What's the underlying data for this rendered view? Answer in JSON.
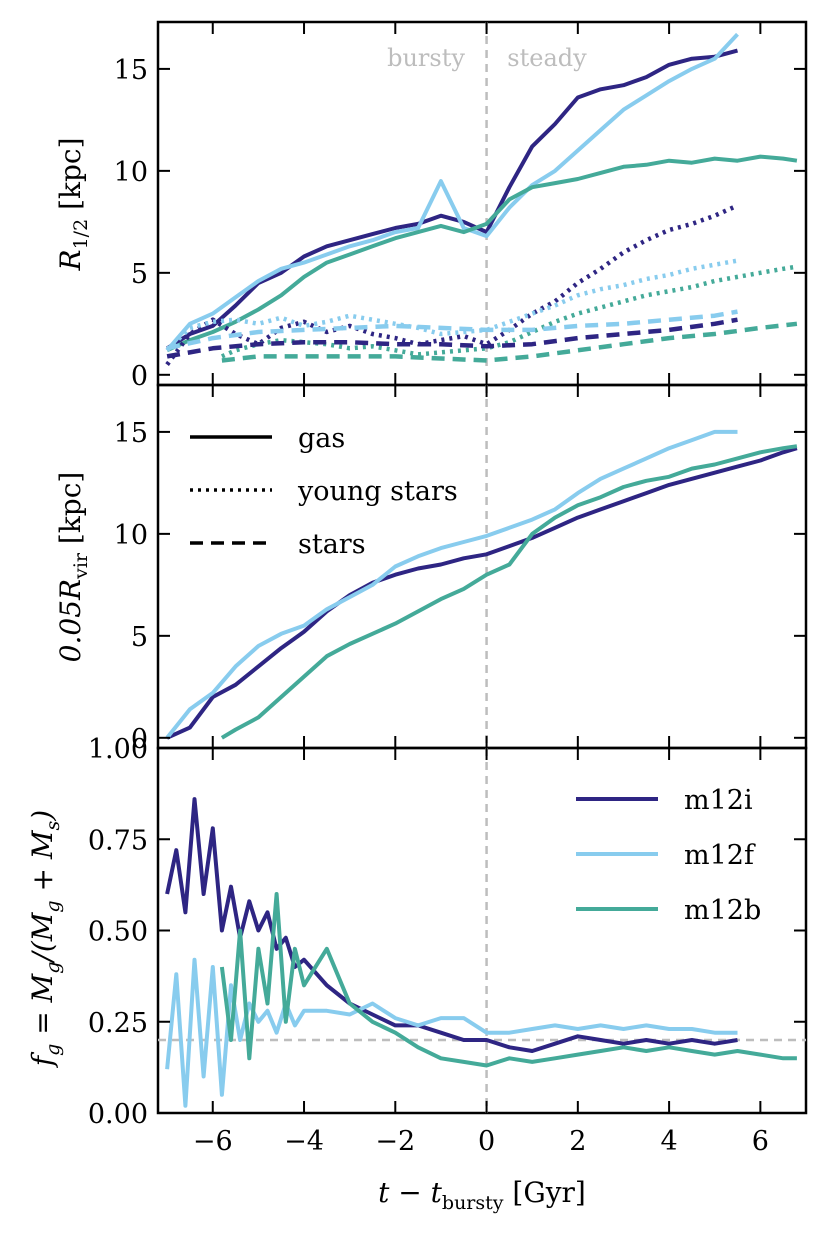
{
  "colors": {
    "m12i": "#2e2583",
    "m12f": "#88ccee",
    "m12b": "#44aa99",
    "reference": "#bdbdbd",
    "axes": "#000000"
  },
  "chart_data": [
    {
      "type": "line",
      "panel": "top",
      "ylabel_main": "R",
      "ylabel_sub": "1/2",
      "ylabel_unit": " [kpc]",
      "ylim": [
        -0.5,
        17.3
      ],
      "yticks": [
        0,
        5,
        10,
        15
      ],
      "ytick_labels": [
        "0",
        "5",
        "10",
        "15"
      ],
      "annotations": {
        "left": "bursty",
        "right": "steady"
      },
      "series": [
        {
          "name": "m12i gas",
          "sim": "m12i",
          "style": "solid",
          "x": [
            -7.0,
            -6.5,
            -6.0,
            -5.5,
            -5.0,
            -4.5,
            -4.0,
            -3.5,
            -3.0,
            -2.5,
            -2.0,
            -1.5,
            -1.0,
            -0.5,
            0.0,
            0.5,
            1.0,
            1.5,
            2.0,
            2.5,
            3.0,
            3.5,
            4.0,
            4.5,
            5.0,
            5.5
          ],
          "y": [
            1.3,
            2.0,
            2.4,
            3.4,
            4.5,
            5.0,
            5.8,
            6.3,
            6.6,
            6.9,
            7.2,
            7.4,
            7.8,
            7.5,
            7.0,
            9.2,
            11.2,
            12.3,
            13.6,
            14.0,
            14.2,
            14.6,
            15.2,
            15.5,
            15.6,
            15.9
          ]
        },
        {
          "name": "m12f gas",
          "sim": "m12f",
          "style": "solid",
          "x": [
            -7.0,
            -6.5,
            -6.0,
            -5.5,
            -5.0,
            -4.5,
            -4.0,
            -3.5,
            -3.0,
            -2.5,
            -2.0,
            -1.5,
            -1.0,
            -0.5,
            0.0,
            0.5,
            1.0,
            1.5,
            2.0,
            2.5,
            3.0,
            3.5,
            4.0,
            4.5,
            5.0,
            5.5
          ],
          "y": [
            1.2,
            2.5,
            3.0,
            3.8,
            4.6,
            5.2,
            5.5,
            5.9,
            6.3,
            6.6,
            7.0,
            7.2,
            9.5,
            7.2,
            6.8,
            8.2,
            9.3,
            10.0,
            11.0,
            12.0,
            13.0,
            13.7,
            14.4,
            15.0,
            15.5,
            16.7
          ]
        },
        {
          "name": "m12b gas",
          "sim": "m12b",
          "style": "solid",
          "x": [
            -7.0,
            -6.5,
            -6.0,
            -5.5,
            -5.0,
            -4.5,
            -4.0,
            -3.5,
            -3.0,
            -2.5,
            -2.0,
            -1.5,
            -1.0,
            -0.5,
            0.0,
            0.5,
            1.0,
            1.5,
            2.0,
            2.5,
            3.0,
            3.5,
            4.0,
            4.5,
            5.0,
            5.5,
            6.0,
            6.5,
            6.8
          ],
          "y": [
            1.2,
            1.7,
            2.1,
            2.6,
            3.2,
            3.9,
            4.8,
            5.5,
            5.9,
            6.3,
            6.7,
            7.0,
            7.3,
            7.0,
            7.4,
            8.6,
            9.2,
            9.4,
            9.6,
            9.9,
            10.2,
            10.3,
            10.5,
            10.4,
            10.6,
            10.5,
            10.7,
            10.6,
            10.5
          ]
        },
        {
          "name": "m12i young stars",
          "sim": "m12i",
          "style": "dotted",
          "x": [
            -7.0,
            -6.5,
            -6.0,
            -5.5,
            -5.0,
            -4.5,
            -4.0,
            -3.5,
            -3.0,
            -2.5,
            -2.0,
            -1.5,
            -1.0,
            -0.5,
            0.0,
            0.5,
            1.0,
            1.5,
            2.0,
            2.5,
            3.0,
            3.5,
            4.0,
            4.5,
            5.0,
            5.5
          ],
          "y": [
            0.5,
            2.0,
            2.7,
            2.0,
            1.5,
            2.3,
            2.6,
            2.1,
            2.4,
            2.0,
            1.8,
            1.5,
            1.7,
            1.9,
            1.5,
            2.2,
            3.0,
            3.6,
            4.5,
            5.2,
            6.0,
            6.6,
            7.1,
            7.4,
            7.8,
            8.3
          ]
        },
        {
          "name": "m12f young stars",
          "sim": "m12f",
          "style": "dotted",
          "x": [
            -7.0,
            -6.5,
            -6.0,
            -5.5,
            -5.0,
            -4.5,
            -4.0,
            -3.5,
            -3.0,
            -2.5,
            -2.0,
            -1.5,
            -1.0,
            -0.5,
            0.0,
            0.5,
            1.0,
            1.5,
            2.0,
            2.5,
            3.0,
            3.5,
            4.0,
            4.5,
            5.0,
            5.5
          ],
          "y": [
            1.2,
            2.3,
            2.6,
            2.7,
            2.5,
            2.8,
            2.4,
            2.6,
            2.9,
            2.7,
            2.5,
            2.3,
            2.0,
            2.1,
            2.2,
            2.6,
            3.0,
            3.4,
            3.9,
            4.2,
            4.4,
            4.7,
            4.9,
            5.2,
            5.4,
            5.6
          ]
        },
        {
          "name": "m12b young stars",
          "sim": "m12b",
          "style": "dotted",
          "x": [
            -5.8,
            -5.5,
            -5.0,
            -4.5,
            -4.0,
            -3.5,
            -3.0,
            -2.5,
            -2.0,
            -1.5,
            -1.0,
            -0.5,
            0.0,
            0.5,
            1.0,
            1.5,
            2.0,
            2.5,
            3.0,
            3.5,
            4.0,
            4.5,
            5.0,
            5.5,
            6.0,
            6.5,
            6.8
          ],
          "y": [
            0.9,
            1.2,
            1.5,
            1.7,
            1.6,
            1.5,
            1.3,
            1.4,
            1.2,
            1.0,
            1.1,
            1.2,
            1.3,
            1.6,
            2.1,
            2.6,
            3.0,
            3.3,
            3.6,
            3.9,
            4.1,
            4.3,
            4.6,
            4.8,
            5.0,
            5.2,
            5.3
          ]
        },
        {
          "name": "m12i stars",
          "sim": "m12i",
          "style": "dashed",
          "x": [
            -7.0,
            -6.0,
            -5.0,
            -4.0,
            -3.0,
            -2.0,
            -1.0,
            0.0,
            1.0,
            2.0,
            3.0,
            4.0,
            5.0,
            5.5
          ],
          "y": [
            0.9,
            1.3,
            1.5,
            1.6,
            1.6,
            1.5,
            1.5,
            1.4,
            1.5,
            1.8,
            2.0,
            2.2,
            2.5,
            2.7
          ]
        },
        {
          "name": "m12f stars",
          "sim": "m12f",
          "style": "dashed",
          "x": [
            -7.0,
            -6.0,
            -5.0,
            -4.0,
            -3.0,
            -2.0,
            -1.0,
            0.0,
            1.0,
            2.0,
            3.0,
            4.0,
            5.0,
            5.5
          ],
          "y": [
            1.3,
            1.8,
            2.1,
            2.2,
            2.3,
            2.4,
            2.3,
            2.2,
            2.2,
            2.4,
            2.5,
            2.7,
            2.9,
            3.1
          ]
        },
        {
          "name": "m12b stars",
          "sim": "m12b",
          "style": "dashed",
          "x": [
            -5.8,
            -5.0,
            -4.0,
            -3.0,
            -2.0,
            -1.0,
            0.0,
            1.0,
            2.0,
            3.0,
            4.0,
            5.0,
            6.0,
            6.8
          ],
          "y": [
            0.7,
            0.9,
            0.9,
            0.9,
            0.9,
            0.8,
            0.7,
            0.9,
            1.2,
            1.5,
            1.8,
            2.0,
            2.3,
            2.5
          ]
        }
      ]
    },
    {
      "type": "line",
      "panel": "middle",
      "ylabel_main": "0.05R",
      "ylabel_sub": "vir",
      "ylabel_unit": " [kpc]",
      "ylim": [
        -0.5,
        17.3
      ],
      "yticks": [
        0,
        5,
        10,
        15
      ],
      "ytick_labels": [
        "0",
        "5",
        "10",
        "15"
      ],
      "legend": {
        "placement": "upper-left",
        "entries": [
          {
            "label": "gas",
            "style": "solid"
          },
          {
            "label": "young stars",
            "style": "dotted"
          },
          {
            "label": "stars",
            "style": "dashed"
          }
        ]
      },
      "series": [
        {
          "name": "m12i",
          "sim": "m12i",
          "style": "solid",
          "x": [
            -7.0,
            -6.5,
            -6.0,
            -5.5,
            -5.0,
            -4.5,
            -4.0,
            -3.5,
            -3.0,
            -2.5,
            -2.0,
            -1.5,
            -1.0,
            -0.5,
            0.0,
            0.5,
            1.0,
            1.5,
            2.0,
            2.5,
            3.0,
            3.5,
            4.0,
            4.5,
            5.0,
            5.5,
            6.0,
            6.5,
            6.8
          ],
          "y": [
            0.0,
            0.5,
            2.0,
            2.6,
            3.5,
            4.4,
            5.2,
            6.2,
            7.0,
            7.6,
            8.0,
            8.3,
            8.5,
            8.8,
            9.0,
            9.4,
            9.8,
            10.3,
            10.8,
            11.2,
            11.6,
            12.0,
            12.4,
            12.7,
            13.0,
            13.3,
            13.6,
            14.0,
            14.2
          ]
        },
        {
          "name": "m12f",
          "sim": "m12f",
          "style": "solid",
          "x": [
            -7.0,
            -6.5,
            -6.0,
            -5.5,
            -5.0,
            -4.5,
            -4.0,
            -3.5,
            -3.0,
            -2.5,
            -2.0,
            -1.5,
            -1.0,
            -0.5,
            0.0,
            0.5,
            1.0,
            1.5,
            2.0,
            2.5,
            3.0,
            3.5,
            4.0,
            4.5,
            5.0,
            5.5
          ],
          "y": [
            0.0,
            1.4,
            2.2,
            3.5,
            4.5,
            5.1,
            5.5,
            6.3,
            6.9,
            7.5,
            8.4,
            8.9,
            9.3,
            9.6,
            9.9,
            10.3,
            10.7,
            11.2,
            12.0,
            12.7,
            13.2,
            13.7,
            14.2,
            14.6,
            15.0,
            15.0
          ]
        },
        {
          "name": "m12b",
          "sim": "m12b",
          "style": "solid",
          "x": [
            -5.8,
            -5.5,
            -5.0,
            -4.5,
            -4.0,
            -3.5,
            -3.0,
            -2.5,
            -2.0,
            -1.5,
            -1.0,
            -0.5,
            0.0,
            0.5,
            1.0,
            1.5,
            2.0,
            2.5,
            3.0,
            3.5,
            4.0,
            4.5,
            5.0,
            5.5,
            6.0,
            6.5,
            6.8
          ],
          "y": [
            0.0,
            0.4,
            1.0,
            2.0,
            3.0,
            4.0,
            4.6,
            5.1,
            5.6,
            6.2,
            6.8,
            7.3,
            8.0,
            8.5,
            10.0,
            10.8,
            11.4,
            11.8,
            12.3,
            12.6,
            12.8,
            13.2,
            13.4,
            13.7,
            14.0,
            14.2,
            14.3
          ]
        }
      ]
    },
    {
      "type": "line",
      "panel": "bottom",
      "ylabel": "f_g = M_g/(M_g + M_s)",
      "ylabel_parts": [
        "f",
        "g",
        " = M",
        "g",
        "/(M",
        "g",
        " + M",
        "s",
        ")"
      ],
      "ylim": [
        0.0,
        1.0
      ],
      "yticks": [
        0.0,
        0.25,
        0.5,
        0.75,
        1.0
      ],
      "ytick_labels": [
        "0.00",
        "0.25",
        "0.50",
        "0.75",
        "1.00"
      ],
      "xlabel": "t − t",
      "xlabel_sub": "bursty",
      "xlabel_unit": " [Gyr]",
      "xlim": [
        -7.2,
        7.0
      ],
      "xticks": [
        -6,
        -4,
        -2,
        0,
        2,
        4,
        6
      ],
      "xtick_labels": [
        "−6",
        "−4",
        "−2",
        "0",
        "2",
        "4",
        "6"
      ],
      "reference_line_y": 0.2,
      "legend": {
        "placement": "upper-right",
        "entries": [
          {
            "label": "m12i",
            "sim": "m12i"
          },
          {
            "label": "m12f",
            "sim": "m12f"
          },
          {
            "label": "m12b",
            "sim": "m12b"
          }
        ]
      },
      "series": [
        {
          "name": "m12i",
          "sim": "m12i",
          "style": "solid",
          "x": [
            -7.0,
            -6.8,
            -6.6,
            -6.4,
            -6.2,
            -6.0,
            -5.8,
            -5.6,
            -5.4,
            -5.2,
            -5.0,
            -4.8,
            -4.6,
            -4.4,
            -4.2,
            -4.0,
            -3.5,
            -3.0,
            -2.5,
            -2.0,
            -1.5,
            -1.0,
            -0.5,
            0.0,
            0.5,
            1.0,
            1.5,
            2.0,
            2.5,
            3.0,
            3.5,
            4.0,
            4.5,
            5.0,
            5.5
          ],
          "y": [
            0.6,
            0.72,
            0.55,
            0.86,
            0.6,
            0.78,
            0.5,
            0.62,
            0.48,
            0.58,
            0.5,
            0.55,
            0.45,
            0.48,
            0.4,
            0.42,
            0.35,
            0.3,
            0.27,
            0.24,
            0.24,
            0.22,
            0.2,
            0.2,
            0.18,
            0.17,
            0.19,
            0.21,
            0.2,
            0.19,
            0.2,
            0.19,
            0.2,
            0.19,
            0.2
          ]
        },
        {
          "name": "m12f",
          "sim": "m12f",
          "style": "solid",
          "x": [
            -7.0,
            -6.8,
            -6.6,
            -6.4,
            -6.2,
            -6.0,
            -5.8,
            -5.6,
            -5.4,
            -5.2,
            -5.0,
            -4.8,
            -4.6,
            -4.4,
            -4.2,
            -4.0,
            -3.5,
            -3.0,
            -2.5,
            -2.0,
            -1.5,
            -1.0,
            -0.5,
            0.0,
            0.5,
            1.0,
            1.5,
            2.0,
            2.5,
            3.0,
            3.5,
            4.0,
            4.5,
            5.0,
            5.5
          ],
          "y": [
            0.12,
            0.38,
            0.02,
            0.42,
            0.1,
            0.4,
            0.05,
            0.35,
            0.2,
            0.3,
            0.25,
            0.28,
            0.22,
            0.3,
            0.24,
            0.28,
            0.28,
            0.27,
            0.3,
            0.26,
            0.24,
            0.26,
            0.26,
            0.22,
            0.22,
            0.23,
            0.24,
            0.23,
            0.24,
            0.23,
            0.24,
            0.23,
            0.23,
            0.22,
            0.22
          ]
        },
        {
          "name": "m12b",
          "sim": "m12b",
          "style": "solid",
          "x": [
            -5.8,
            -5.6,
            -5.4,
            -5.2,
            -5.0,
            -4.8,
            -4.6,
            -4.4,
            -4.2,
            -4.0,
            -3.5,
            -3.0,
            -2.5,
            -2.0,
            -1.5,
            -1.0,
            -0.5,
            0.0,
            0.5,
            1.0,
            1.5,
            2.0,
            2.5,
            3.0,
            3.5,
            4.0,
            4.5,
            5.0,
            5.5,
            6.0,
            6.5,
            6.8
          ],
          "y": [
            0.4,
            0.2,
            0.5,
            0.15,
            0.45,
            0.3,
            0.6,
            0.25,
            0.45,
            0.35,
            0.45,
            0.3,
            0.25,
            0.22,
            0.18,
            0.15,
            0.14,
            0.13,
            0.15,
            0.14,
            0.15,
            0.16,
            0.17,
            0.18,
            0.17,
            0.18,
            0.17,
            0.16,
            0.17,
            0.16,
            0.15,
            0.15
          ]
        }
      ]
    }
  ]
}
